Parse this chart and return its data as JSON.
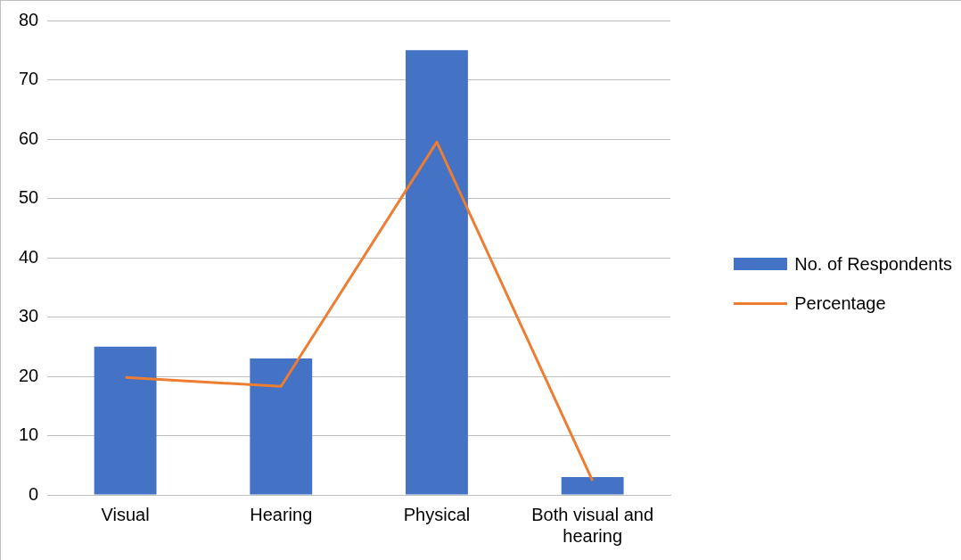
{
  "chart_data": {
    "type": "bar",
    "categories": [
      "Visual",
      "Hearing",
      "Physical",
      "Both visual and hearing"
    ],
    "series": [
      {
        "name": "No. of Respondents",
        "color": "#4472c4",
        "values": [
          25,
          23,
          75,
          3
        ]
      },
      {
        "name": "Percentage",
        "type": "line",
        "color": "#ed7d31",
        "values": [
          19.8,
          18.3,
          59.5,
          2.4
        ]
      }
    ],
    "ylim": [
      0,
      80
    ],
    "yticks": [
      0,
      10,
      20,
      30,
      40,
      50,
      60,
      70,
      80
    ],
    "grid": "y",
    "legend": "right",
    "marker": "none"
  }
}
